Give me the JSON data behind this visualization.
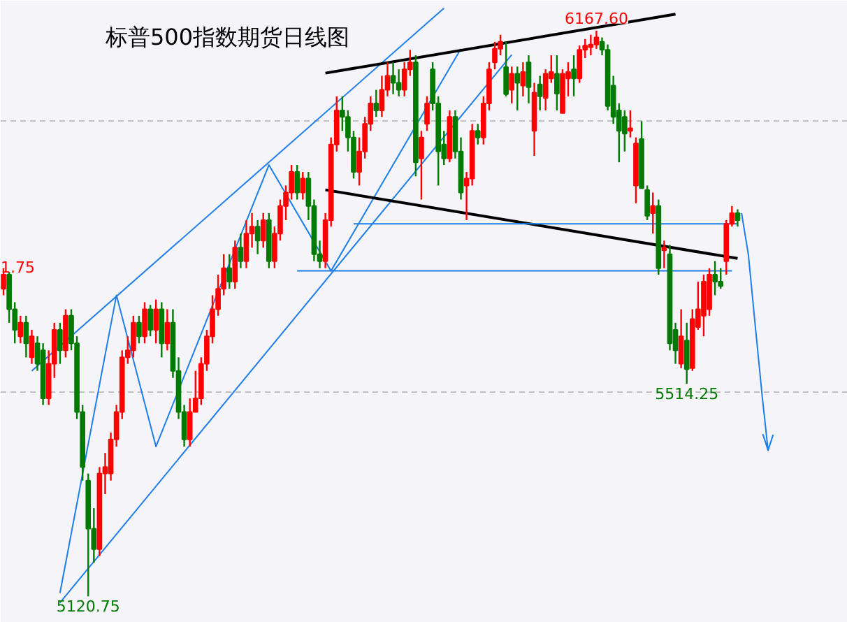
{
  "chart_data": {
    "type": "candlestick",
    "title": "标普500指数期货日线图",
    "categories": [
      null,
      null,
      null,
      null,
      null,
      null,
      null,
      null,
      null,
      null,
      null,
      null,
      null,
      null,
      null,
      null,
      null,
      null,
      null,
      null,
      null,
      null,
      null,
      null,
      null,
      null,
      null,
      null,
      null,
      null,
      null,
      null,
      null,
      null,
      null,
      null,
      null,
      null,
      null,
      null,
      null,
      null,
      null,
      null,
      null,
      null,
      null,
      null,
      null,
      null,
      null,
      null,
      null,
      null,
      null,
      null,
      null,
      null,
      null,
      null,
      null,
      null,
      null,
      null,
      null,
      null,
      null,
      null,
      null,
      null,
      null,
      null,
      null,
      null,
      null,
      null,
      null,
      null,
      null,
      null,
      null,
      null,
      null,
      null,
      null,
      null,
      null,
      null,
      null,
      null,
      null,
      null,
      null,
      null,
      null,
      null,
      null,
      null,
      null,
      null,
      null,
      null,
      null,
      null,
      null,
      null,
      null,
      null,
      null,
      null,
      null,
      null,
      null,
      null,
      null,
      null,
      null,
      null,
      null,
      null,
      null,
      null,
      null,
      null,
      null,
      null,
      null,
      null,
      null,
      null,
      null
    ],
    "ohlc": [
      [
        5690,
        5728,
        5678,
        5716
      ],
      [
        5716,
        5721,
        5627,
        5652
      ],
      [
        5652,
        5665,
        5589,
        5614
      ],
      [
        5602,
        5640,
        5589,
        5627
      ],
      [
        5627,
        5640,
        5563,
        5589
      ],
      [
        5563,
        5614,
        5551,
        5602
      ],
      [
        5589,
        5602,
        5538,
        5551
      ],
      [
        5576,
        5589,
        5475,
        5487
      ],
      [
        5487,
        5576,
        5475,
        5551
      ],
      [
        5551,
        5627,
        5525,
        5614
      ],
      [
        5614,
        5627,
        5551,
        5576
      ],
      [
        5576,
        5652,
        5563,
        5640
      ],
      [
        5640,
        5652,
        5576,
        5589
      ],
      [
        5589,
        5602,
        5449,
        5462
      ],
      [
        5462,
        5475,
        5335,
        5360
      ],
      [
        5335,
        5348,
        5120.75,
        5246
      ],
      [
        5246,
        5284,
        5183,
        5208
      ],
      [
        5208,
        5360,
        5195,
        5348
      ],
      [
        5348,
        5386,
        5310,
        5360
      ],
      [
        5348,
        5424,
        5335,
        5411
      ],
      [
        5411,
        5475,
        5398,
        5462
      ],
      [
        5462,
        5576,
        5449,
        5563
      ],
      [
        5563,
        5602,
        5551,
        5576
      ],
      [
        5576,
        5640,
        5563,
        5627
      ],
      [
        5627,
        5640,
        5589,
        5602
      ],
      [
        5602,
        5665,
        5589,
        5652
      ],
      [
        5652,
        5660,
        5602,
        5614
      ],
      [
        5614,
        5670,
        5589,
        5652
      ],
      [
        5652,
        5665,
        5563,
        5589
      ],
      [
        5589,
        5652,
        5576,
        5627
      ],
      [
        5627,
        5652,
        5525,
        5538
      ],
      [
        5538,
        5563,
        5449,
        5462
      ],
      [
        5462,
        5475,
        5398,
        5411
      ],
      [
        5411,
        5487,
        5398,
        5462
      ],
      [
        5462,
        5538,
        5462,
        5487
      ],
      [
        5487,
        5563,
        5475,
        5551
      ],
      [
        5551,
        5614,
        5538,
        5602
      ],
      [
        5602,
        5678,
        5589,
        5652
      ],
      [
        5652,
        5716,
        5640,
        5690
      ],
      [
        5690,
        5754,
        5678,
        5728
      ],
      [
        5728,
        5754,
        5690,
        5703
      ],
      [
        5703,
        5779,
        5690,
        5766
      ],
      [
        5766,
        5792,
        5728,
        5741
      ],
      [
        5741,
        5817,
        5728,
        5792
      ],
      [
        5792,
        5830,
        5766,
        5805
      ],
      [
        5805,
        5817,
        5754,
        5779
      ],
      [
        5779,
        5830,
        5766,
        5817
      ],
      [
        5817,
        5830,
        5728,
        5741
      ],
      [
        5741,
        5805,
        5728,
        5792
      ],
      [
        5792,
        5855,
        5779,
        5843
      ],
      [
        5843,
        5881,
        5817,
        5868
      ],
      [
        5868,
        5919,
        5855,
        5906
      ],
      [
        5906,
        5919,
        5855,
        5868
      ],
      [
        5868,
        5906,
        5855,
        5894
      ],
      [
        5894,
        5906,
        5817,
        5843
      ],
      [
        5843,
        5855,
        5741,
        5754
      ],
      [
        5754,
        5779,
        5728,
        5741
      ],
      [
        5741,
        5830,
        5728,
        5817
      ],
      [
        5817,
        5970,
        5805,
        5957
      ],
      [
        5957,
        6046,
        5944,
        6020
      ],
      [
        6020,
        6046,
        5982,
        6008
      ],
      [
        6008,
        6020,
        5944,
        5970
      ],
      [
        5970,
        5982,
        5894,
        5906
      ],
      [
        5906,
        5970,
        5881,
        5944
      ],
      [
        5944,
        6008,
        5931,
        5995
      ],
      [
        5995,
        6046,
        5982,
        6033
      ],
      [
        6033,
        6058,
        6008,
        6020
      ],
      [
        6020,
        6084,
        6008,
        6058
      ],
      [
        6058,
        6109,
        6046,
        6084
      ],
      [
        6084,
        6109,
        6050,
        6071
      ],
      [
        6071,
        6096,
        6046,
        6058
      ],
      [
        6058,
        6109,
        6046,
        6096
      ],
      [
        6096,
        6132,
        6084,
        6109
      ],
      [
        6109,
        6122,
        5898,
        5924
      ],
      [
        5931,
        5982,
        5855,
        5970
      ],
      [
        5995,
        6046,
        5982,
        6033
      ],
      [
        6096,
        6109,
        6020,
        6033
      ],
      [
        6033,
        6046,
        5881,
        5944
      ],
      [
        5957,
        5982,
        5919,
        5931
      ],
      [
        5931,
        6020,
        5924,
        6008
      ],
      [
        6008,
        6020,
        5931,
        5944
      ],
      [
        5944,
        5970,
        5855,
        5868
      ],
      [
        5881,
        5906,
        5817,
        5894
      ],
      [
        5894,
        5995,
        5881,
        5982
      ],
      [
        5982,
        5995,
        5957,
        5970
      ],
      [
        5970,
        6046,
        5957,
        6033
      ],
      [
        6033,
        6109,
        6020,
        6096
      ],
      [
        6109,
        6147,
        6096,
        6134
      ],
      [
        6134,
        6160,
        6122,
        6147
      ],
      [
        6100,
        6147,
        6046,
        6050
      ],
      [
        6058,
        6101,
        6033,
        6088
      ],
      [
        6088,
        6101,
        6020,
        6071
      ],
      [
        6066,
        6109,
        6046,
        6091
      ],
      [
        6109,
        6122,
        6033,
        6063
      ],
      [
        5982,
        6071,
        5936,
        6053
      ],
      [
        6068,
        6084,
        6020,
        6046
      ],
      [
        6043,
        6096,
        6020,
        6088
      ],
      [
        6079,
        6122,
        6071,
        6091
      ],
      [
        6088,
        6122,
        6020,
        6051
      ],
      [
        6015,
        6096,
        6015,
        6088
      ],
      [
        6079,
        6109,
        6046,
        6091
      ],
      [
        6096,
        6122,
        6046,
        6079
      ],
      [
        6079,
        6140,
        6071,
        6132
      ],
      [
        6132,
        6152,
        6117,
        6140
      ],
      [
        6137,
        6160,
        6122,
        6142
      ],
      [
        6142,
        6167.6,
        6134,
        6155
      ],
      [
        6147,
        6155,
        6122,
        6132
      ],
      [
        6132,
        6142,
        6020,
        6028
      ],
      [
        6066,
        6084,
        5995,
        6008
      ],
      [
        6020,
        6033,
        5924,
        5982
      ],
      [
        6008,
        6020,
        5944,
        5977
      ],
      [
        5982,
        6020,
        5970,
        5987
      ],
      [
        5881,
        5970,
        5848,
        5959
      ],
      [
        5967,
        6000,
        5875,
        5876
      ],
      [
        5873,
        5881,
        5817,
        5825
      ],
      [
        5830,
        5868,
        5792,
        5843
      ],
      [
        5843,
        5855,
        5716,
        5728
      ],
      [
        5761,
        5779,
        5728,
        5766
      ],
      [
        5754,
        5771,
        5576,
        5589
      ],
      [
        5614,
        5627,
        5551,
        5576
      ],
      [
        5551,
        5652,
        5543,
        5602
      ],
      [
        5594,
        5627,
        5514.25,
        5541
      ],
      [
        5543,
        5652,
        5538,
        5634
      ],
      [
        5619,
        5703,
        5614,
        5652
      ],
      [
        5640,
        5716,
        5602,
        5703
      ],
      [
        5652,
        5728,
        5640,
        5716
      ],
      [
        5716,
        5741,
        5678,
        5703
      ],
      [
        5703,
        5728,
        5690,
        5695
      ],
      [
        5741,
        5817,
        5716,
        5810
      ],
      [
        5810,
        5843,
        5805,
        5830
      ],
      [
        5830,
        5837,
        5805,
        5817
      ]
    ],
    "series": [
      {
        "type": "line",
        "color": "#1e7fe8",
        "values": [
          null,
          null,
          null,
          null,
          null,
          5538,
          null,
          null,
          null,
          null,
          null,
          null,
          null,
          null,
          null,
          null,
          null,
          null,
          null,
          null,
          null,
          null,
          null,
          null,
          null,
          null,
          null,
          null,
          null,
          null,
          null,
          null,
          null,
          null,
          null,
          null,
          null,
          null,
          null,
          null,
          null,
          null,
          null,
          null,
          null,
          null,
          null,
          null,
          null,
          null,
          null,
          null,
          null,
          null,
          null,
          null,
          null,
          null,
          null,
          null,
          null,
          null,
          null,
          null,
          null,
          null,
          null,
          null,
          null,
          null,
          null,
          null,
          null,
          null,
          null,
          null,
          null,
          null,
          6209,
          null,
          null,
          null,
          null,
          null,
          null,
          null,
          null,
          null,
          null,
          null,
          null,
          null,
          null,
          null,
          null,
          null,
          null,
          null,
          null,
          null,
          null,
          null,
          null,
          null,
          null,
          null,
          null,
          null,
          null,
          null,
          null,
          null,
          null,
          null,
          null,
          null,
          null,
          null,
          null,
          null,
          null,
          null,
          null,
          null,
          null,
          null,
          null,
          null,
          null,
          null,
          null
        ]
      },
      {
        "type": "line",
        "color": "#1e7fe8",
        "values": [
          null,
          null,
          null,
          null,
          null,
          null,
          null,
          null,
          null,
          null,
          5109,
          null,
          null,
          null,
          null,
          null,
          null,
          null,
          null,
          null,
          null,
          null,
          null,
          null,
          null,
          null,
          null,
          null,
          null,
          null,
          null,
          null,
          null,
          null,
          null,
          null,
          null,
          null,
          null,
          null,
          null,
          null,
          null,
          null,
          null,
          null,
          null,
          null,
          null,
          null,
          null,
          null,
          null,
          null,
          null,
          null,
          null,
          null,
          null,
          null,
          null,
          null,
          null,
          null,
          null,
          null,
          null,
          null,
          null,
          null,
          null,
          null,
          null,
          null,
          null,
          null,
          null,
          null,
          null,
          null,
          null,
          null,
          null,
          null,
          null,
          null,
          null,
          null,
          null,
          null,
          6123,
          null,
          null,
          null,
          null,
          null,
          null,
          null,
          null,
          null,
          null,
          null,
          null,
          null,
          null,
          null,
          null,
          null,
          null,
          null,
          null,
          null,
          null,
          null,
          null,
          null,
          null,
          null,
          null,
          null,
          null,
          null,
          null,
          null,
          null,
          null,
          null,
          null,
          null,
          null,
          null
        ]
      },
      {
        "type": "line",
        "color": "#1e7fe8",
        "values": [
          null,
          null,
          null,
          null,
          null,
          null,
          null,
          null,
          null,
          null,
          5127,
          null,
          null,
          null,
          null,
          null,
          null,
          null,
          null,
          null,
          5678,
          null,
          null,
          null,
          null,
          null,
          null,
          5398,
          null,
          null,
          null,
          null,
          null,
          null,
          null,
          null,
          null,
          null,
          null,
          null,
          null,
          null,
          null,
          null,
          null,
          null,
          null,
          5919,
          null,
          null,
          null,
          null,
          null,
          null,
          null,
          null,
          null,
          null,
          5723,
          null,
          null,
          null,
          null,
          null,
          null,
          null,
          null,
          null,
          null,
          null,
          null,
          null,
          null,
          null,
          null,
          null,
          null,
          null,
          null,
          null,
          null,
          6134,
          null,
          null,
          null,
          null,
          null,
          null,
          null,
          null,
          null,
          null,
          null,
          null,
          null,
          null,
          null,
          null,
          null,
          null,
          null,
          null,
          null,
          null,
          null,
          null,
          null,
          null,
          null,
          null,
          null,
          null,
          null,
          null,
          null,
          null,
          null,
          null,
          null,
          null,
          null,
          null,
          null,
          null,
          null,
          null,
          null,
          null,
          null,
          null,
          null
        ]
      },
      {
        "type": "line",
        "color": "#000000",
        "values": [
          null,
          null,
          null,
          null,
          null,
          null,
          null,
          null,
          null,
          null,
          null,
          null,
          null,
          null,
          null,
          null,
          null,
          null,
          null,
          null,
          null,
          null,
          null,
          null,
          null,
          null,
          null,
          null,
          null,
          null,
          null,
          null,
          null,
          null,
          null,
          null,
          null,
          null,
          null,
          null,
          null,
          null,
          null,
          null,
          null,
          null,
          null,
          null,
          null,
          null,
          null,
          null,
          null,
          null,
          null,
          null,
          null,
          6089,
          null,
          null,
          null,
          null,
          null,
          null,
          null,
          null,
          null,
          null,
          null,
          null,
          null,
          null,
          null,
          null,
          null,
          null,
          null,
          null,
          null,
          null,
          null,
          null,
          null,
          null,
          null,
          null,
          null,
          null,
          null,
          null,
          null,
          null,
          null,
          null,
          null,
          null,
          null,
          null,
          null,
          null,
          null,
          null,
          null,
          null,
          null,
          null,
          null,
          null,
          null,
          null,
          null,
          null,
          null,
          null,
          null,
          null,
          null,
          null,
          null,
          6198,
          null,
          null,
          null,
          null,
          null,
          null,
          null,
          null,
          null,
          null,
          null
        ]
      },
      {
        "type": "line",
        "color": "#000000",
        "values": [
          null,
          null,
          null,
          null,
          null,
          null,
          null,
          null,
          null,
          null,
          null,
          null,
          null,
          null,
          null,
          null,
          null,
          null,
          null,
          null,
          null,
          null,
          null,
          null,
          null,
          null,
          null,
          null,
          null,
          null,
          null,
          null,
          null,
          null,
          null,
          null,
          null,
          null,
          null,
          null,
          null,
          null,
          null,
          null,
          null,
          null,
          null,
          null,
          null,
          null,
          null,
          null,
          null,
          null,
          null,
          null,
          null,
          5873,
          null,
          null,
          null,
          null,
          null,
          null,
          null,
          null,
          null,
          null,
          null,
          null,
          null,
          null,
          null,
          null,
          null,
          null,
          null,
          null,
          null,
          null,
          null,
          null,
          null,
          null,
          null,
          null,
          null,
          null,
          null,
          null,
          null,
          null,
          null,
          null,
          null,
          null,
          null,
          null,
          null,
          null,
          null,
          null,
          null,
          null,
          null,
          null,
          null,
          null,
          null,
          null,
          null,
          null,
          null,
          null,
          null,
          null,
          null,
          null,
          null,
          null,
          null,
          null,
          null,
          null,
          null,
          null,
          null,
          null,
          null,
          null,
          5746
        ]
      },
      {
        "type": "line",
        "color": "#1e7fe8",
        "values": [
          null,
          null,
          null,
          null,
          null,
          null,
          null,
          null,
          null,
          null,
          null,
          null,
          null,
          null,
          null,
          null,
          null,
          null,
          null,
          null,
          null,
          null,
          null,
          null,
          null,
          null,
          null,
          null,
          null,
          null,
          null,
          null,
          null,
          null,
          null,
          null,
          null,
          null,
          null,
          null,
          null,
          null,
          null,
          null,
          null,
          null,
          null,
          null,
          null,
          null,
          null,
          null,
          null,
          null,
          null,
          null,
          null,
          null,
          null,
          null,
          null,
          null,
          5810,
          null,
          null,
          null,
          null,
          null,
          null,
          null,
          null,
          null,
          null,
          null,
          null,
          null,
          null,
          null,
          null,
          null,
          null,
          null,
          null,
          null,
          null,
          null,
          null,
          null,
          null,
          null,
          null,
          null,
          null,
          null,
          null,
          null,
          null,
          null,
          null,
          null,
          null,
          null,
          null,
          null,
          null,
          null,
          null,
          null,
          null,
          null,
          null,
          null,
          null,
          null,
          null,
          null,
          null,
          null,
          null,
          null,
          null,
          null,
          null,
          null,
          null,
          null,
          null,
          null,
          null,
          null,
          5810
        ]
      },
      {
        "type": "line",
        "color": "#1e7fe8",
        "values": [
          null,
          null,
          null,
          null,
          null,
          null,
          null,
          null,
          null,
          null,
          null,
          null,
          null,
          null,
          null,
          null,
          null,
          null,
          null,
          null,
          null,
          null,
          null,
          null,
          null,
          null,
          null,
          null,
          null,
          null,
          null,
          null,
          null,
          null,
          null,
          null,
          null,
          null,
          null,
          null,
          null,
          null,
          null,
          null,
          null,
          null,
          null,
          null,
          null,
          null,
          null,
          null,
          5723,
          null,
          null,
          null,
          null,
          null,
          null,
          null,
          null,
          null,
          null,
          null,
          null,
          null,
          null,
          null,
          null,
          null,
          null,
          null,
          null,
          null,
          null,
          null,
          null,
          null,
          null,
          null,
          null,
          null,
          null,
          null,
          null,
          null,
          null,
          null,
          null,
          null,
          null,
          null,
          null,
          null,
          null,
          null,
          null,
          null,
          null,
          null,
          null,
          null,
          null,
          null,
          null,
          null,
          null,
          null,
          null,
          null,
          null,
          null,
          null,
          null,
          null,
          null,
          null,
          null,
          null,
          null,
          null,
          null,
          null,
          null,
          null,
          null,
          null,
          null,
          null,
          5723,
          null
        ]
      }
    ],
    "annotations": [
      {
        "text": "6167.60",
        "y": 6167.6
      },
      {
        "text": "5514.25",
        "y": 5514.25
      },
      {
        "text": "5120.75",
        "y": 5120.75
      },
      "1.75"
    ],
    "ylim": [
      5072,
      6223
    ],
    "yticks": [
      {
        "value": 6000,
        "label": null
      },
      {
        "value": 5500,
        "label": null
      }
    ],
    "grid": "y",
    "tick_labels": false
  }
}
